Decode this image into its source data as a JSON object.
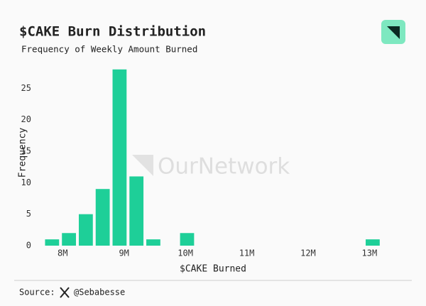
{
  "chart_data": {
    "type": "histogram",
    "title": "$CAKE Burn Distribution",
    "subtitle": "Frequency of Weekly Amount Burned",
    "x_label": "$CAKE Burned",
    "y_label": "Frequency",
    "watermark": "OurNetwork",
    "color": "#1ecf98",
    "bins": [
      7690000,
      7965000,
      8240000,
      8515000,
      8790000,
      9065000,
      9340000,
      9615000,
      9890000,
      10165000,
      10440000,
      10715000,
      10990000,
      11265000,
      11540000,
      11815000,
      12090000,
      12365000,
      12640000,
      12915000,
      13190000
    ],
    "counts": [
      1,
      2,
      5,
      9,
      28,
      11,
      1,
      0,
      2,
      0,
      0,
      0,
      0,
      0,
      0,
      0,
      0,
      0,
      0,
      1
    ],
    "xlim": [
      7650000,
      13250000
    ],
    "xticks": [
      {
        "value": 8000000,
        "label": "8M"
      },
      {
        "value": 9000000,
        "label": "9M"
      },
      {
        "value": 10000000,
        "label": "10M"
      },
      {
        "value": 11000000,
        "label": "11M"
      },
      {
        "value": 12000000,
        "label": "12M"
      },
      {
        "value": 13000000,
        "label": "13M"
      }
    ],
    "ylim": [
      0,
      28.2
    ],
    "yticks": [
      0,
      5,
      10,
      15,
      20,
      25
    ],
    "grid": false
  },
  "footer": {
    "source": "Source:",
    "handle": "@Sebabesse"
  }
}
